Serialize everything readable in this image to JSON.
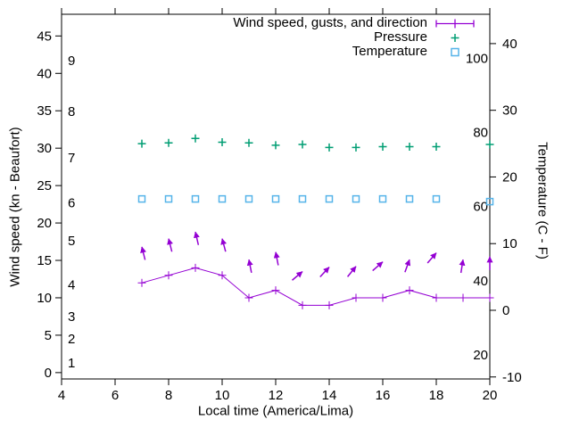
{
  "chart_data": {
    "type": "line",
    "title": "",
    "xlabel": "Local time (America/Lima)",
    "ylabel_left": "Wind speed (kn - Beaufort)",
    "ylabel_right": "Temperature (C - F)",
    "grid": false,
    "legend": {
      "position": "top-right-inside",
      "entries": [
        {
          "label": "Wind speed, gusts, and direction",
          "marker": "line-with-plus",
          "color": "#9400d3"
        },
        {
          "label": "Pressure",
          "marker": "plus",
          "color": "#009e73"
        },
        {
          "label": "Temperature",
          "marker": "open-square",
          "color": "#56b4e9"
        }
      ]
    },
    "axes": {
      "x": {
        "lim": [
          4,
          20
        ],
        "ticks": [
          4,
          6,
          8,
          10,
          12,
          14,
          16,
          18,
          20
        ]
      },
      "y_left_kn": {
        "lim": [
          -0.85,
          47.9
        ],
        "ticks": [
          0,
          5,
          10,
          15,
          20,
          25,
          30,
          35,
          40,
          45
        ]
      },
      "y_left_beaufort_labels": [
        {
          "bft": "1",
          "kn": 1.3
        },
        {
          "bft": "2",
          "kn": 4.5
        },
        {
          "bft": "3",
          "kn": 7.5
        },
        {
          "bft": "4",
          "kn": 11.7
        },
        {
          "bft": "5",
          "kn": 17.6
        },
        {
          "bft": "6",
          "kn": 22.7
        },
        {
          "bft": "7",
          "kn": 28.7
        },
        {
          "bft": "8",
          "kn": 34.9
        },
        {
          "bft": "9",
          "kn": 41.7
        }
      ],
      "y_right_c": {
        "lim": [
          -10.3,
          44.4
        ],
        "ticks": [
          -10,
          0,
          10,
          20,
          30,
          40
        ]
      },
      "y_right_f_labels": [
        20,
        40,
        60,
        80,
        100
      ]
    },
    "hours": [
      7,
      8,
      9,
      10,
      11,
      12,
      13,
      14,
      15,
      16,
      17,
      18,
      19,
      20
    ],
    "wind": {
      "color": "#9400d3",
      "speed_kn": [
        12,
        13,
        14,
        13,
        10,
        11,
        9,
        9,
        10,
        10,
        11,
        10,
        10,
        10
      ],
      "gust_kn": [
        16.8,
        17.9,
        18.8,
        17.9,
        15.1,
        16.1,
        13.5,
        14.1,
        14.2,
        14.8,
        15.1,
        16.0,
        15.1,
        15.5
      ],
      "arrow_angle_deg_clockwise_from_up": [
        -14,
        -14,
        -13,
        -15,
        -11,
        -11,
        50,
        43,
        39,
        49,
        20,
        41,
        9,
        0
      ]
    },
    "pressure": {
      "color": "#009e73",
      "values_on_left_kn_axis": [
        30.6,
        30.7,
        31.3,
        30.8,
        30.7,
        30.4,
        30.5,
        30.1,
        30.1,
        30.2,
        30.2,
        30.2,
        null,
        30.5
      ]
    },
    "temperature": {
      "color": "#56b4e9",
      "celsius": [
        16.7,
        16.7,
        16.7,
        16.7,
        16.7,
        16.7,
        16.7,
        16.7,
        16.7,
        16.7,
        16.7,
        16.7,
        null,
        16.3
      ]
    }
  }
}
